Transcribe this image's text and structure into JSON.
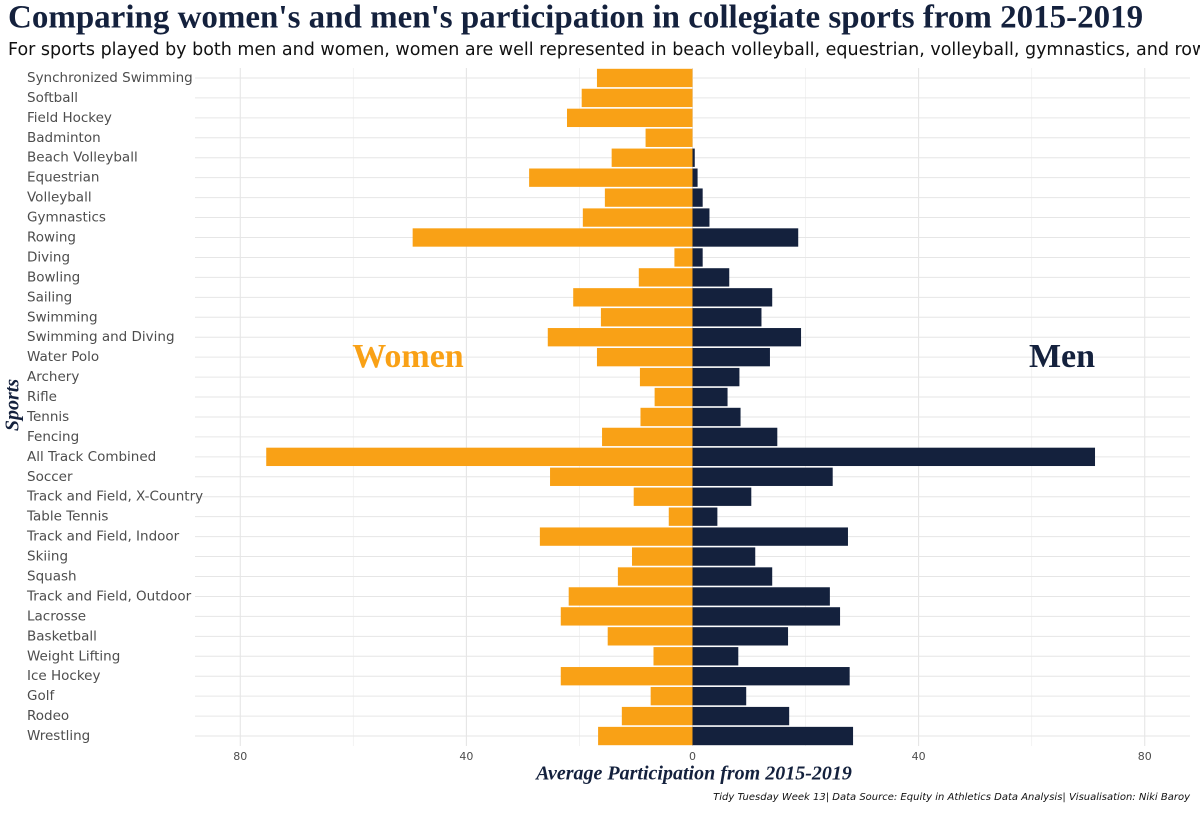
{
  "chart_data": {
    "type": "diverging-bar",
    "title": "Comparing women's and men's participation in collegiate sports from 2015-2019",
    "subtitle": "For sports played by both men and women, women are well represented in beach volleyball, equestrian, volleyball, gymnastics, and rowing.",
    "x_label": "Average Participation from 2015-2019",
    "y_label": "Sports",
    "caption": "Tidy Tuesday Week 13| Data Source: Equity in Athletics Data Analysis| Visualisation: Niki Baroy",
    "annotations": [
      {
        "text": "Women",
        "color": "#f9a116"
      },
      {
        "text": "Men",
        "color": "#14213d"
      }
    ],
    "categories": [
      "Synchronized Swimming",
      "Softball",
      "Field Hockey",
      "Badminton",
      "Beach Volleyball",
      "Equestrian",
      "Volleyball",
      "Gymnastics",
      "Rowing",
      "Diving",
      "Bowling",
      "Sailing",
      "Swimming",
      "Swimming and Diving",
      "Water Polo",
      "Archery",
      "Rifle",
      "Tennis",
      "Fencing",
      "All Track Combined",
      "Soccer",
      "Track and Field, X-Country",
      "Table Tennis",
      "Track and Field, Indoor",
      "Skiing",
      "Squash",
      "Track and Field, Outdoor",
      "Lacrosse",
      "Basketball",
      "Weight Lifting",
      "Ice Hockey",
      "Golf",
      "Rodeo",
      "Wrestling"
    ],
    "series": [
      {
        "name": "Women",
        "color": "#f9a116",
        "values": [
          -16.9,
          -19.6,
          -22.2,
          -8.3,
          -14.3,
          -28.9,
          -15.5,
          -19.4,
          -49.5,
          -3.2,
          -9.5,
          -21.1,
          -16.2,
          -25.6,
          -16.9,
          -9.3,
          -6.7,
          -9.2,
          -16.0,
          -75.4,
          -25.2,
          -10.4,
          -4.2,
          -27.0,
          -10.7,
          -13.2,
          -21.9,
          -23.3,
          -15.0,
          -6.9,
          -23.3,
          -7.4,
          -12.5,
          -16.7
        ]
      },
      {
        "name": "Men",
        "color": "#14213d",
        "values": [
          null,
          null,
          null,
          null,
          0.4,
          0.9,
          1.8,
          3.0,
          18.7,
          1.8,
          6.5,
          14.1,
          12.2,
          19.2,
          13.7,
          8.3,
          6.2,
          8.5,
          15.0,
          71.2,
          24.8,
          10.4,
          4.4,
          27.5,
          11.1,
          14.1,
          24.3,
          26.1,
          16.9,
          8.1,
          27.8,
          9.5,
          17.1,
          28.4
        ]
      }
    ],
    "xlim": [
      -88,
      88
    ],
    "xticks": [
      {
        "value": -80,
        "label": "80"
      },
      {
        "value": -40,
        "label": "40"
      },
      0,
      40,
      80
    ],
    "xminor": [
      -60,
      -20,
      20,
      60
    ],
    "grid": true
  }
}
